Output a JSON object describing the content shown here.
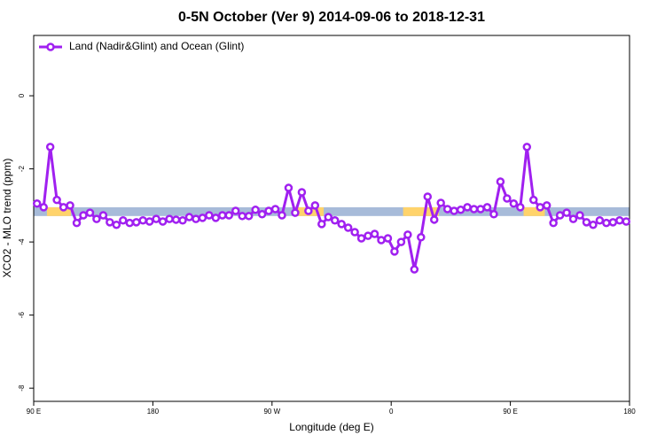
{
  "chart_data": {
    "type": "line",
    "title": "0-5N October (Ver 9)   2014-09-06 to 2018-12-31",
    "x_label": "Longitude (deg E)",
    "y_label": "XCO2 - MLO trend (ppm)",
    "xlim": [
      90,
      540
    ],
    "ylim": [
      -8.36,
      1.65
    ],
    "xticks": [
      {
        "value": 90,
        "label": "90 E"
      },
      180,
      {
        "value": 270,
        "label": "90 W"
      },
      {
        "value": 360,
        "label": "0"
      },
      {
        "value": 450,
        "label": "90 E"
      },
      {
        "value": 540,
        "label": "180"
      }
    ],
    "yticks": [
      0,
      -2,
      -4,
      -6,
      -8
    ],
    "legend": "top-left",
    "band": {
      "range": [
        -3.05,
        -3.29
      ],
      "color": "#a7bbd9",
      "highlight_color": "#ffd36b",
      "highlights": [
        [
          100,
          118
        ],
        [
          286,
          309
        ],
        [
          369,
          396
        ],
        [
          460,
          476
        ]
      ]
    },
    "x": [
      92.5,
      97.5,
      102.5,
      107.5,
      112.5,
      117.5,
      122.5,
      127.5,
      132.5,
      137.5,
      142.5,
      147.5,
      152.5,
      157.5,
      162.5,
      167.5,
      172.5,
      177.5,
      182.5,
      187.5,
      192.5,
      197.5,
      202.5,
      207.5,
      212.5,
      217.5,
      222.5,
      227.5,
      232.5,
      237.5,
      242.5,
      247.5,
      252.5,
      257.5,
      262.5,
      267.5,
      272.5,
      277.5,
      282.5,
      287.5,
      292.5,
      297.5,
      302.5,
      307.5,
      312.5,
      317.5,
      322.5,
      327.5,
      332.5,
      337.5,
      342.5,
      347.5,
      352.5,
      357.5,
      362.5,
      367.5,
      372.5,
      377.5,
      382.5,
      387.5,
      392.5,
      397.5,
      402.5,
      407.5,
      412.5,
      417.5,
      422.5,
      427.5,
      432.5,
      437.5,
      442.5,
      447.5,
      452.5,
      457.5,
      462.5,
      467.5,
      472.5,
      477.5,
      482.5,
      487.5,
      492.5,
      497.5,
      502.5,
      507.5,
      512.5,
      517.5,
      522.5,
      527.5,
      532.5,
      537.5
    ],
    "series": [
      {
        "name": "Land (Nadir&Glint) and Ocean (Glint)",
        "color": "#a020f0",
        "values": [
          -2.95,
          -3.05,
          -1.4,
          -2.85,
          -3.05,
          -3.0,
          -3.48,
          -3.27,
          -3.2,
          -3.37,
          -3.27,
          -3.46,
          -3.53,
          -3.41,
          -3.48,
          -3.46,
          -3.41,
          -3.44,
          -3.37,
          -3.44,
          -3.37,
          -3.39,
          -3.41,
          -3.32,
          -3.37,
          -3.34,
          -3.27,
          -3.34,
          -3.27,
          -3.27,
          -3.15,
          -3.29,
          -3.29,
          -3.12,
          -3.24,
          -3.15,
          -3.1,
          -3.27,
          -2.52,
          -3.2,
          -2.64,
          -3.15,
          -3.0,
          -3.51,
          -3.32,
          -3.41,
          -3.51,
          -3.61,
          -3.73,
          -3.9,
          -3.83,
          -3.78,
          -3.95,
          -3.9,
          -4.26,
          -4.0,
          -3.8,
          -4.75,
          -3.87,
          -2.76,
          -3.39,
          -2.93,
          -3.1,
          -3.15,
          -3.12,
          -3.05,
          -3.1,
          -3.1,
          -3.05,
          -3.24,
          -2.35,
          -2.81,
          -2.95,
          -3.05,
          -1.4,
          -2.85,
          -3.05,
          -3.0,
          -3.48,
          -3.27,
          -3.2,
          -3.37,
          -3.27,
          -3.46,
          -3.53,
          -3.41,
          -3.48,
          -3.46,
          -3.41,
          -3.44
        ]
      }
    ]
  }
}
